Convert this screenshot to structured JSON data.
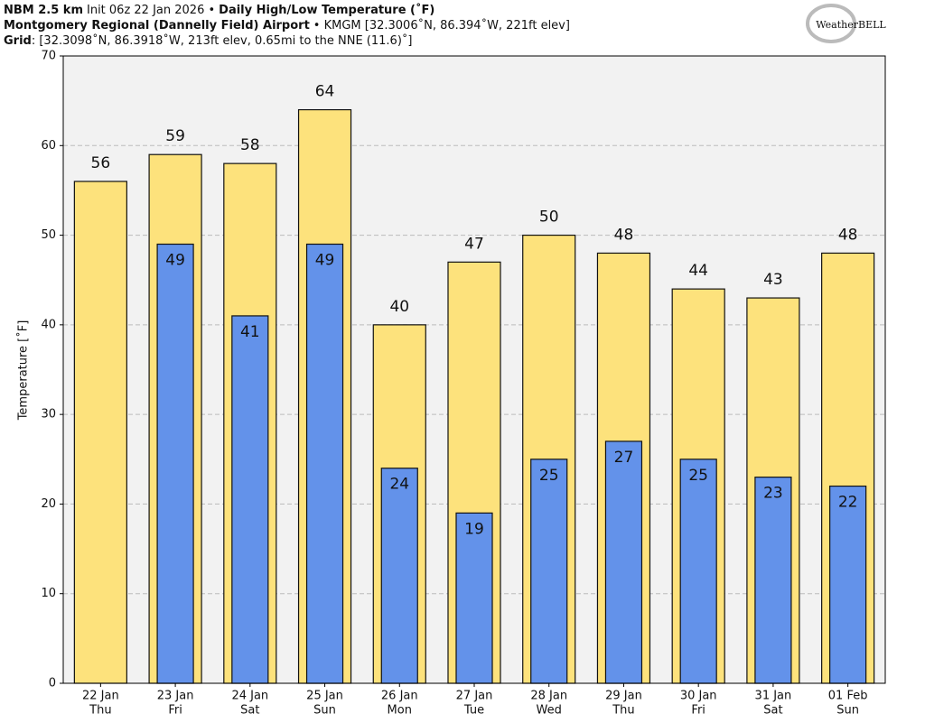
{
  "header": {
    "line1": [
      "NBM 2.5 km",
      "Init 06z 22 Jan 2026 •",
      "Daily High/Low Temperature (˚F)"
    ],
    "line2": [
      "Montgomery Regional (Dannelly Field) Airport",
      "• KMGM [32.3006˚N, 86.394˚W, 221ft elev]"
    ],
    "line3": [
      "Grid",
      ": [32.3098˚N, 86.3918˚W, 213ft elev, 0.65mi to the NNE (11.6)˚]"
    ],
    "logo": "WeatherBELL"
  },
  "chart_data": {
    "type": "bar",
    "y_label": "Temperature [˚F]",
    "categories": [
      "22 Jan",
      "23 Jan",
      "24 Jan",
      "25 Jan",
      "26 Jan",
      "27 Jan",
      "28 Jan",
      "29 Jan",
      "30 Jan",
      "31 Jan",
      "01 Feb"
    ],
    "weekdays": [
      "Thu",
      "Fri",
      "Sat",
      "Sun",
      "Mon",
      "Tue",
      "Wed",
      "Thu",
      "Fri",
      "Sat",
      "Sun"
    ],
    "series": [
      {
        "color": "#fde27c",
        "values": [
          56,
          59,
          58,
          64,
          40,
          47,
          50,
          48,
          44,
          43,
          48
        ]
      },
      {
        "color": "#6392ea",
        "values": [
          null,
          49,
          41,
          49,
          24,
          19,
          25,
          27,
          25,
          23,
          22
        ]
      }
    ],
    "ylim": [
      0,
      70
    ],
    "yticks": [
      0,
      10,
      20,
      30,
      40,
      50,
      60,
      70
    ],
    "grid": true
  }
}
